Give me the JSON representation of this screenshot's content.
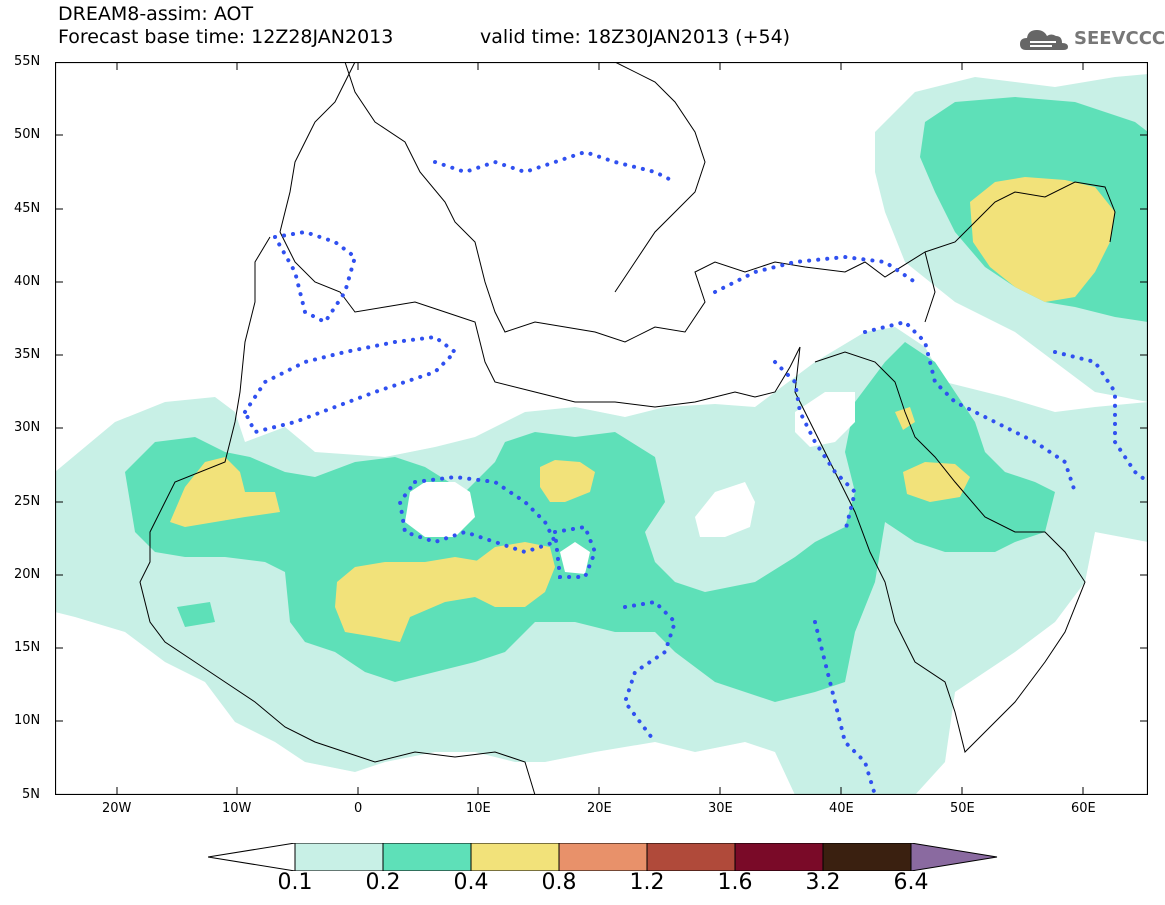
{
  "header": {
    "title_line1": "DREAM8-assim: AOT",
    "title_line2": "Forecast base time: 12Z28JAN2013",
    "valid_time": "valid time: 18Z30JAN2013 (+54)",
    "logo_text": "SEEVCCC"
  },
  "map": {
    "lat_labels": [
      "55N",
      "50N",
      "45N",
      "40N",
      "35N",
      "30N",
      "25N",
      "20N",
      "15N",
      "10N",
      "5N"
    ],
    "lon_labels": [
      "20W",
      "10W",
      "0",
      "10E",
      "20E",
      "30E",
      "40E",
      "50E",
      "60E"
    ],
    "region": "North Africa, Europe and Middle East"
  },
  "colorbar": {
    "labels": [
      "0.1",
      "0.2",
      "0.4",
      "0.8",
      "1.2",
      "1.6",
      "3.2",
      "6.4"
    ],
    "colors": [
      "#ffffff",
      "#c8f0e6",
      "#5ee0b8",
      "#f2e27a",
      "#e8916a",
      "#b04a3a",
      "#7a0a28",
      "#3a2010",
      "#8a6aa0"
    ]
  },
  "colors": {
    "bin_01_02": "#c8f0e6",
    "bin_02_04": "#5ee0b8",
    "bin_04_08": "#f2e27a",
    "dotted_contour": "#3050f0"
  }
}
